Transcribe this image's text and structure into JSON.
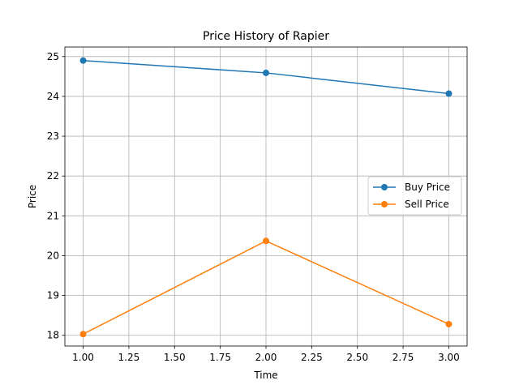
{
  "chart_data": {
    "type": "line",
    "title": "Price History of Rapier",
    "xlabel": "Time",
    "ylabel": "Price",
    "xlim": [
      0.9,
      3.1
    ],
    "ylim": [
      17.73,
      25.24
    ],
    "xticks": [
      1.0,
      1.25,
      1.5,
      1.75,
      2.0,
      2.25,
      2.5,
      2.75,
      3.0
    ],
    "xtick_labels": [
      "1.00",
      "1.25",
      "1.50",
      "1.75",
      "2.00",
      "2.25",
      "2.50",
      "2.75",
      "3.00"
    ],
    "yticks": [
      18,
      19,
      20,
      21,
      22,
      23,
      24,
      25
    ],
    "ytick_labels": [
      "18",
      "19",
      "20",
      "21",
      "22",
      "23",
      "24",
      "25"
    ],
    "grid": true,
    "legend_position": "center-right",
    "x": [
      1,
      2,
      3
    ],
    "series": [
      {
        "name": "Buy Price",
        "color": "#1f77b4",
        "values": [
          24.9,
          24.59,
          24.07
        ]
      },
      {
        "name": "Sell Price",
        "color": "#ff7f0e",
        "values": [
          18.03,
          20.37,
          18.28
        ]
      }
    ]
  }
}
